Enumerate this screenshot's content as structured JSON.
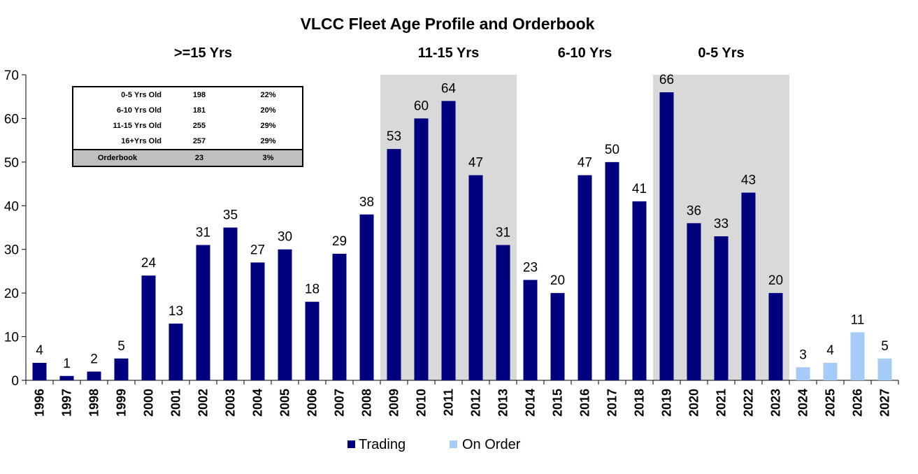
{
  "chart_data": {
    "type": "bar",
    "title": "VLCC Fleet Age Profile and Orderbook",
    "categories": [
      "1996",
      "1997",
      "1998",
      "1999",
      "2000",
      "2001",
      "2002",
      "2003",
      "2004",
      "2005",
      "2006",
      "2007",
      "2008",
      "2009",
      "2010",
      "2011",
      "2012",
      "2013",
      "2014",
      "2015",
      "2016",
      "2017",
      "2018",
      "2019",
      "2020",
      "2021",
      "2022",
      "2023",
      "2024",
      "2025",
      "2026",
      "2027"
    ],
    "series": [
      {
        "name": "Trading",
        "color": "#00007f",
        "values": [
          4,
          1,
          2,
          5,
          24,
          13,
          31,
          35,
          27,
          30,
          18,
          29,
          38,
          53,
          60,
          64,
          47,
          31,
          23,
          20,
          47,
          50,
          41,
          66,
          36,
          33,
          43,
          20,
          null,
          null,
          null,
          null
        ]
      },
      {
        "name": "On Order",
        "color": "#a6cbf7",
        "values": [
          null,
          null,
          null,
          null,
          null,
          null,
          null,
          null,
          null,
          null,
          null,
          null,
          null,
          null,
          null,
          null,
          null,
          null,
          null,
          null,
          null,
          null,
          null,
          null,
          null,
          null,
          null,
          null,
          3,
          4,
          11,
          5
        ]
      }
    ],
    "ylim": [
      0,
      70
    ],
    "yticks": [
      "0",
      "10",
      "20",
      "30",
      "40",
      "50",
      "60",
      "70"
    ],
    "xlabel": "",
    "ylabel": "",
    "grid": false,
    "legend": "bottom-center",
    "age_bands": [
      {
        "label": ">=15 Yrs",
        "from": "1996",
        "to": "2008",
        "shaded": false
      },
      {
        "label": "11-15 Yrs",
        "from": "2009",
        "to": "2013",
        "shaded": true
      },
      {
        "label": "6-10 Yrs",
        "from": "2014",
        "to": "2018",
        "shaded": false
      },
      {
        "label": "0-5 Yrs",
        "from": "2019",
        "to": "2023",
        "shaded": true
      }
    ],
    "shade_color": "#d9d9d9"
  },
  "summary_table": {
    "rows": [
      {
        "label": "0-5 Yrs Old",
        "count": "198",
        "pct": "22%"
      },
      {
        "label": "6-10 Yrs Old",
        "count": "181",
        "pct": "20%"
      },
      {
        "label": "11-15 Yrs Old",
        "count": "255",
        "pct": "29%"
      },
      {
        "label": "16+Yrs Old",
        "count": "257",
        "pct": "29%"
      }
    ],
    "orderbook": {
      "label": "Orderbook",
      "count": "23",
      "pct": "3%"
    }
  }
}
